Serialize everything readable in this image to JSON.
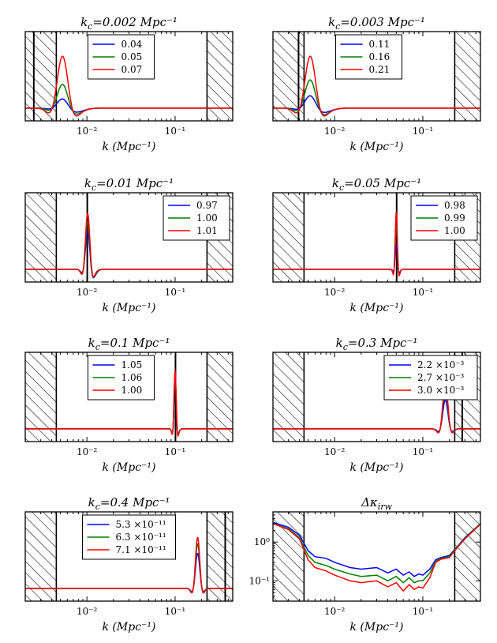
{
  "figure": {
    "x_axis_label": "k (Mpc⁻¹)",
    "x_tick_labels": [
      "10⁻²",
      "10⁻¹"
    ],
    "colors": {
      "blue": "#0000ff",
      "green": "#007f00",
      "red": "#ff0000"
    }
  },
  "chart_data": [
    {
      "type": "line",
      "title": "k_c=0.002 Mpc⁻¹",
      "peak_k": 0.0053,
      "peak_width": 0.12,
      "ylim": [
        -0.2,
        1.2
      ],
      "xlim": [
        0.002,
        0.45
      ],
      "logy": false,
      "excluded_regions": [
        [
          0.002,
          0.0045
        ],
        [
          0.23,
          0.45
        ]
      ],
      "center_line": 0.0025,
      "legend": [
        "0.04",
        "0.05",
        "0.07"
      ],
      "legend_position": "top-center",
      "series": [
        {
          "name": "0.04",
          "color": "blue",
          "amplitude": 0.15,
          "tail": 0.05
        },
        {
          "name": "0.05",
          "color": "green",
          "amplitude": 0.38,
          "tail": 0.06
        },
        {
          "name": "0.07",
          "color": "red",
          "amplitude": 0.82,
          "tail": 0.05
        }
      ]
    },
    {
      "type": "line",
      "title": "k_c=0.003 Mpc⁻¹",
      "peak_k": 0.0053,
      "peak_width": 0.12,
      "ylim": [
        -0.2,
        1.2
      ],
      "xlim": [
        0.002,
        0.45
      ],
      "logy": false,
      "excluded_regions": [
        [
          0.002,
          0.0045
        ],
        [
          0.23,
          0.45
        ]
      ],
      "center_line": 0.0039,
      "legend": [
        "0.11",
        "0.16",
        "0.21"
      ],
      "legend_position": "top-center",
      "series": [
        {
          "name": "0.11",
          "color": "blue",
          "amplitude": 0.2,
          "tail": 0.05
        },
        {
          "name": "0.16",
          "color": "green",
          "amplitude": 0.45,
          "tail": 0.06
        },
        {
          "name": "0.21",
          "color": "red",
          "amplitude": 0.82,
          "tail": 0.05
        }
      ]
    },
    {
      "type": "line",
      "title": "k_c=0.01 Mpc⁻¹",
      "peak_k": 0.0102,
      "peak_width": 0.05,
      "ylim": [
        -0.2,
        1.2
      ],
      "xlim": [
        0.002,
        0.45
      ],
      "logy": false,
      "excluded_regions": [
        [
          0.002,
          0.0045
        ],
        [
          0.23,
          0.45
        ]
      ],
      "center_line": 0.0101,
      "legend": [
        "0.97",
        "1.00",
        "1.01"
      ],
      "legend_position": "top-right",
      "series": [
        {
          "name": "0.97",
          "color": "blue",
          "amplitude": 0.6,
          "tail": 0.08
        },
        {
          "name": "1.00",
          "color": "green",
          "amplitude": 0.75,
          "tail": 0.06
        },
        {
          "name": "1.01",
          "color": "red",
          "amplitude": 0.88,
          "tail": 0.04
        }
      ]
    },
    {
      "type": "line",
      "title": "k_c=0.05 Mpc⁻¹",
      "peak_k": 0.05,
      "peak_width": 0.025,
      "ylim": [
        -0.2,
        1.2
      ],
      "xlim": [
        0.002,
        0.45
      ],
      "logy": false,
      "excluded_regions": [
        [
          0.002,
          0.0045
        ],
        [
          0.23,
          0.45
        ]
      ],
      "center_line": 0.0505,
      "legend": [
        "0.98",
        "0.99",
        "1.00"
      ],
      "legend_position": "top-right",
      "series": [
        {
          "name": "0.98",
          "color": "blue",
          "amplitude": 0.4,
          "tail": 0.02
        },
        {
          "name": "0.99",
          "color": "green",
          "amplitude": 0.7,
          "tail": 0.02
        },
        {
          "name": "1.00",
          "color": "red",
          "amplitude": 0.9,
          "tail": 0.02
        }
      ]
    },
    {
      "type": "line",
      "title": "k_c=0.1 Mpc⁻¹",
      "peak_k": 0.1,
      "peak_width": 0.025,
      "ylim": [
        -0.2,
        1.2
      ],
      "xlim": [
        0.002,
        0.45
      ],
      "logy": false,
      "excluded_regions": [
        [
          0.002,
          0.0045
        ],
        [
          0.23,
          0.45
        ]
      ],
      "center_line": 0.101,
      "legend": [
        "1.05",
        "1.06",
        "1.00"
      ],
      "legend_position": "top-center",
      "series": [
        {
          "name": "1.05",
          "color": "blue",
          "amplitude": 0.82,
          "tail": 0.03
        },
        {
          "name": "1.06",
          "color": "green",
          "amplitude": 0.87,
          "tail": 0.03
        },
        {
          "name": "1.00",
          "color": "red",
          "amplitude": 0.92,
          "tail": 0.03
        }
      ]
    },
    {
      "type": "line",
      "title": "k_c=0.3 Mpc⁻¹",
      "peak_k": 0.18,
      "peak_width": 0.06,
      "ylim": [
        -0.2,
        1.2
      ],
      "xlim": [
        0.002,
        0.45
      ],
      "logy": false,
      "excluded_regions": [
        [
          0.002,
          0.0045
        ],
        [
          0.23,
          0.45
        ]
      ],
      "center_line": 0.28,
      "legend": [
        "2.2 ×10⁻³",
        "2.7 ×10⁻³",
        "3.0 ×10⁻³"
      ],
      "legend_position": "top-right",
      "series": [
        {
          "name": "2.2 ×10⁻³",
          "color": "blue",
          "amplitude": 0.45,
          "tail": 0.0
        },
        {
          "name": "2.7 ×10⁻³",
          "color": "green",
          "amplitude": 0.62,
          "tail": 0.0
        },
        {
          "name": "3.0 ×10⁻³",
          "color": "red",
          "amplitude": 0.7,
          "tail": 0.0
        }
      ]
    },
    {
      "type": "line",
      "title": "k_c=0.4 Mpc⁻¹",
      "peak_k": 0.18,
      "peak_width": 0.05,
      "ylim": [
        -0.2,
        1.2
      ],
      "xlim": [
        0.002,
        0.45
      ],
      "logy": false,
      "excluded_regions": [
        [
          0.002,
          0.0045
        ],
        [
          0.23,
          0.45
        ]
      ],
      "center_line": 0.37,
      "legend": [
        "5.3 ×10⁻¹¹",
        "6.3 ×10⁻¹¹",
        "7.1 ×10⁻¹¹"
      ],
      "legend_position": "top-center",
      "series": [
        {
          "name": "5.3 ×10⁻¹¹",
          "color": "blue",
          "amplitude": 0.55,
          "tail": 0.0
        },
        {
          "name": "6.3 ×10⁻¹¹",
          "color": "green",
          "amplitude": 0.7,
          "tail": 0.0
        },
        {
          "name": "7.1 ×10⁻¹¹",
          "color": "red",
          "amplitude": 0.8,
          "tail": 0.0
        }
      ]
    },
    {
      "type": "line",
      "title": "Δκ_irw",
      "logy": true,
      "xlim": [
        0.002,
        0.45
      ],
      "ylim": [
        0.03,
        6
      ],
      "y_tick_labels": [
        "10⁰",
        "10⁻¹"
      ],
      "excluded_regions": [
        [
          0.002,
          0.0045
        ],
        [
          0.23,
          0.45
        ]
      ],
      "series": [
        {
          "name": "blue",
          "color": "blue",
          "x": [
            0.002,
            0.003,
            0.004,
            0.005,
            0.006,
            0.008,
            0.01,
            0.015,
            0.02,
            0.03,
            0.04,
            0.05,
            0.06,
            0.07,
            0.08,
            0.09,
            0.1,
            0.12,
            0.14,
            0.16,
            0.2,
            0.25,
            0.3,
            0.45
          ],
          "y": [
            3.2,
            2.4,
            1.5,
            0.6,
            0.42,
            0.38,
            0.3,
            0.22,
            0.2,
            0.22,
            0.16,
            0.2,
            0.14,
            0.17,
            0.13,
            0.15,
            0.14,
            0.2,
            0.35,
            0.4,
            0.45,
            0.8,
            1.3,
            3.0
          ]
        },
        {
          "name": "green",
          "color": "green",
          "x": [
            0.002,
            0.003,
            0.004,
            0.005,
            0.006,
            0.008,
            0.01,
            0.015,
            0.02,
            0.03,
            0.04,
            0.05,
            0.06,
            0.07,
            0.08,
            0.09,
            0.1,
            0.12,
            0.14,
            0.16,
            0.2,
            0.25,
            0.3,
            0.45
          ],
          "y": [
            3.0,
            2.2,
            1.3,
            0.45,
            0.3,
            0.25,
            0.2,
            0.15,
            0.13,
            0.14,
            0.1,
            0.13,
            0.09,
            0.12,
            0.09,
            0.1,
            0.1,
            0.16,
            0.32,
            0.38,
            0.42,
            0.78,
            1.25,
            3.0
          ]
        },
        {
          "name": "red",
          "color": "red",
          "x": [
            0.002,
            0.003,
            0.004,
            0.005,
            0.006,
            0.008,
            0.01,
            0.015,
            0.02,
            0.03,
            0.04,
            0.05,
            0.06,
            0.07,
            0.08,
            0.09,
            0.1,
            0.12,
            0.14,
            0.16,
            0.2,
            0.25,
            0.3,
            0.45
          ],
          "y": [
            3.0,
            2.1,
            1.2,
            0.35,
            0.22,
            0.18,
            0.14,
            0.1,
            0.09,
            0.1,
            0.07,
            0.09,
            0.055,
            0.08,
            0.06,
            0.07,
            0.065,
            0.12,
            0.3,
            0.36,
            0.4,
            0.75,
            1.2,
            2.9
          ]
        }
      ]
    }
  ]
}
